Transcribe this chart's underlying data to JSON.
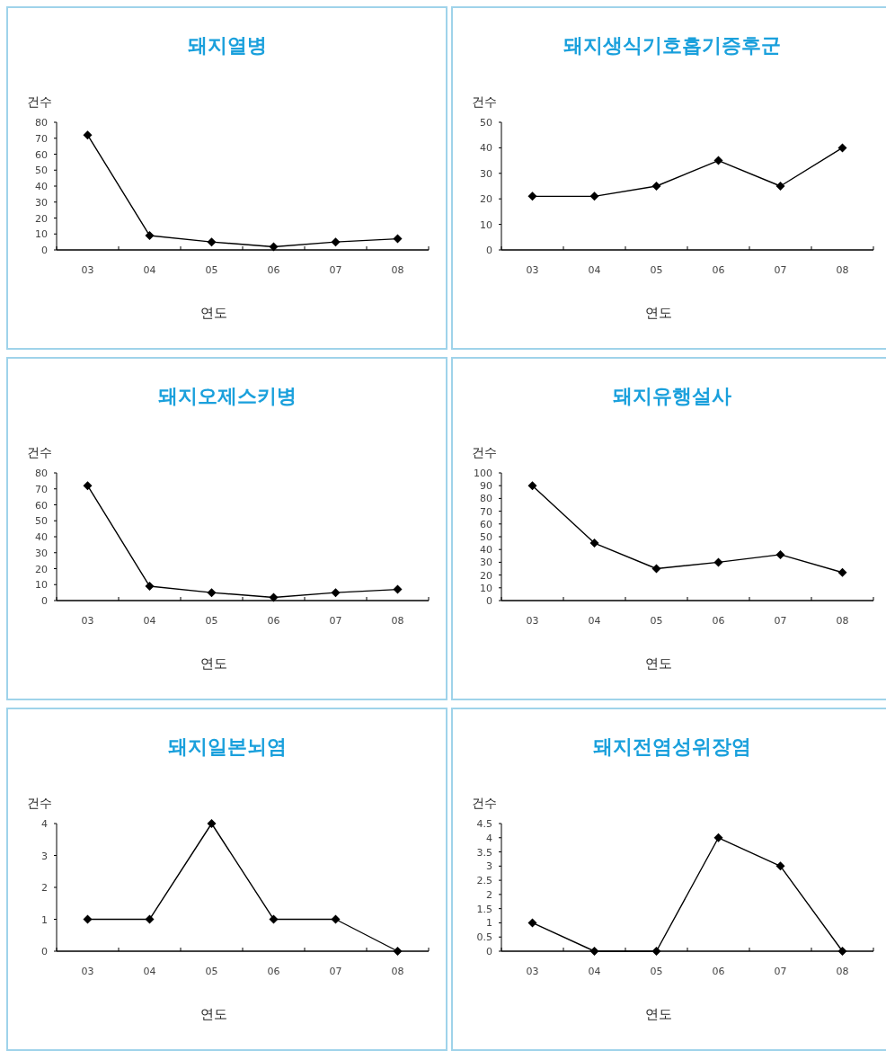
{
  "chart_data": [
    {
      "type": "line",
      "title": "돼지열병",
      "ylabel": "건수",
      "xlabel": "연도",
      "categories": [
        "03",
        "04",
        "05",
        "06",
        "07",
        "08"
      ],
      "series": [
        {
          "color": "#000000",
          "values": [
            72,
            9,
            5,
            2,
            5,
            7
          ]
        }
      ],
      "ylim": [
        0,
        80
      ],
      "yticks": [
        0,
        10,
        20,
        30,
        40,
        50,
        60,
        70,
        80
      ],
      "marker": "diamond",
      "grid": false
    },
    {
      "type": "line",
      "title": "돼지생식기호흡기증후군",
      "ylabel": "건수",
      "xlabel": "연도",
      "categories": [
        "03",
        "04",
        "05",
        "06",
        "07",
        "08"
      ],
      "series": [
        {
          "color": "#000000",
          "values": [
            21,
            21,
            25,
            35,
            25,
            40
          ]
        }
      ],
      "ylim": [
        0,
        50
      ],
      "yticks": [
        0,
        10,
        20,
        30,
        40,
        50
      ],
      "marker": "diamond",
      "grid": false
    },
    {
      "type": "line",
      "title": "돼지오제스키병",
      "ylabel": "건수",
      "xlabel": "연도",
      "categories": [
        "03",
        "04",
        "05",
        "06",
        "07",
        "08"
      ],
      "series": [
        {
          "color": "#000000",
          "values": [
            72,
            9,
            5,
            2,
            5,
            7
          ]
        }
      ],
      "ylim": [
        0,
        80
      ],
      "yticks": [
        0,
        10,
        20,
        30,
        40,
        50,
        60,
        70,
        80
      ],
      "marker": "diamond",
      "grid": false
    },
    {
      "type": "line",
      "title": "돼지유행설사",
      "ylabel": "건수",
      "xlabel": "연도",
      "categories": [
        "03",
        "04",
        "05",
        "06",
        "07",
        "08"
      ],
      "series": [
        {
          "color": "#000000",
          "values": [
            90,
            45,
            25,
            30,
            36,
            22
          ]
        }
      ],
      "ylim": [
        0,
        100
      ],
      "yticks": [
        0,
        10,
        20,
        30,
        40,
        50,
        60,
        70,
        80,
        90,
        100
      ],
      "marker": "diamond",
      "grid": false
    },
    {
      "type": "line",
      "title": "돼지일본뇌염",
      "ylabel": "건수",
      "xlabel": "연도",
      "categories": [
        "03",
        "04",
        "05",
        "06",
        "07",
        "08"
      ],
      "series": [
        {
          "color": "#000000",
          "values": [
            1,
            1,
            4,
            1,
            1,
            0
          ]
        }
      ],
      "ylim": [
        0,
        4
      ],
      "yticks": [
        0,
        1,
        2,
        3,
        4
      ],
      "marker": "diamond",
      "grid": false
    },
    {
      "type": "line",
      "title": "돼지전염성위장염",
      "ylabel": "건수",
      "xlabel": "연도",
      "categories": [
        "03",
        "04",
        "05",
        "06",
        "07",
        "08"
      ],
      "series": [
        {
          "color": "#000000",
          "values": [
            1,
            0,
            0,
            4,
            3,
            0
          ]
        }
      ],
      "ylim": [
        0,
        4.5
      ],
      "yticks": [
        0,
        0.5,
        1,
        1.5,
        2,
        2.5,
        3,
        3.5,
        4,
        4.5
      ],
      "marker": "diamond",
      "grid": false
    }
  ]
}
